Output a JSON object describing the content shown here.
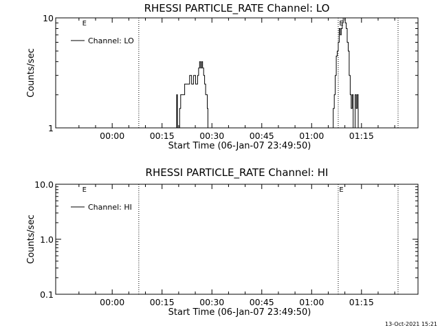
{
  "footer": {
    "timestamp": "13-Oct-2021 15:21"
  },
  "chart_data": [
    {
      "type": "line",
      "title": "RHESSI PARTICLE_RATE Channel: LO",
      "xlabel": "Start Time (06-Jan-07 23:49:50)",
      "ylabel": "Counts/sec",
      "x_units": "minutes",
      "xlim": [
        -17,
        92
      ],
      "ylim": [
        1,
        10
      ],
      "yscale": "log",
      "xticks": [
        {
          "t": 0,
          "label": "00:00"
        },
        {
          "t": 15,
          "label": "00:15"
        },
        {
          "t": 30,
          "label": "00:30"
        },
        {
          "t": 45,
          "label": "00:45"
        },
        {
          "t": 60,
          "label": "01:00"
        },
        {
          "t": 75,
          "label": "01:15"
        }
      ],
      "yticks": [
        {
          "v": 1,
          "label": "1"
        },
        {
          "v": 10,
          "label": "10"
        }
      ],
      "vlines": [
        8,
        68,
        86
      ],
      "flags": [
        {
          "t": -9,
          "text": "E"
        },
        {
          "t": 68.3,
          "text": "E"
        }
      ],
      "legend": {
        "label": "Channel: LO",
        "placement": "top-left"
      },
      "series": [
        {
          "name": "Channel: LO",
          "x": [
            19.2,
            19.4,
            19.6,
            20.0,
            20.3,
            20.6,
            20.9,
            21.2,
            21.5,
            21.8,
            22.1,
            22.4,
            22.7,
            23.0,
            23.3,
            23.6,
            23.9,
            24.2,
            24.5,
            24.8,
            25.1,
            25.4,
            25.7,
            26.0,
            26.3,
            26.6,
            26.9,
            27.2,
            27.5,
            27.8,
            28.1,
            28.4,
            28.6,
            28.8,
            61.7,
            62.0,
            62.3,
            62.6,
            62.9,
            63.2,
            63.5,
            63.8,
            64.1,
            64.4,
            64.7,
            65.0,
            65.3,
            65.6,
            65.9,
            66.2,
            66.5,
            66.8,
            67.1,
            67.4,
            67.7,
            68.0,
            68.3,
            68.6,
            68.9,
            69.2,
            69.5,
            69.8,
            70.1,
            70.4,
            70.7,
            71.0,
            71.3,
            71.6,
            71.9,
            72.2,
            72.5,
            72.8,
            73.1,
            73.4,
            73.7,
            74.0
          ],
          "y": [
            1,
            2,
            1,
            1,
            1.5,
            2,
            2,
            2,
            2,
            2.5,
            2.5,
            2.5,
            2.5,
            2.5,
            3,
            3,
            2.5,
            2.5,
            3,
            3,
            2.5,
            2.5,
            3,
            3.5,
            4,
            3.5,
            4,
            3.5,
            3,
            2.5,
            2,
            2,
            1.5,
            1,
            1,
            1,
            1,
            1,
            1,
            1,
            1,
            1,
            1,
            1,
            1,
            1,
            1,
            1,
            1,
            1,
            1.5,
            2,
            3,
            4.5,
            5,
            6,
            8,
            7,
            8,
            9,
            10,
            10,
            9,
            8,
            6,
            5,
            3,
            2,
            1.5,
            2,
            1,
            1,
            2,
            1.5,
            2,
            1
          ]
        }
      ]
    },
    {
      "type": "line",
      "title": "RHESSI PARTICLE_RATE Channel: HI",
      "xlabel": "Start Time (06-Jan-07 23:49:50)",
      "ylabel": "Counts/sec",
      "x_units": "minutes",
      "xlim": [
        -17,
        92
      ],
      "ylim": [
        0.1,
        10
      ],
      "yscale": "log",
      "xticks": [
        {
          "t": 0,
          "label": "00:00"
        },
        {
          "t": 15,
          "label": "00:15"
        },
        {
          "t": 30,
          "label": "00:30"
        },
        {
          "t": 45,
          "label": "00:45"
        },
        {
          "t": 60,
          "label": "01:00"
        },
        {
          "t": 75,
          "label": "01:15"
        }
      ],
      "yticks": [
        {
          "v": 0.1,
          "label": "0.1"
        },
        {
          "v": 1,
          "label": "1.0"
        },
        {
          "v": 10,
          "label": "10.0"
        }
      ],
      "vlines": [
        8,
        68,
        86
      ],
      "flags": [
        {
          "t": -9,
          "text": "E"
        },
        {
          "t": 68.3,
          "text": "E"
        }
      ],
      "legend": {
        "label": "Channel: HI",
        "placement": "top-left"
      },
      "series": [
        {
          "name": "Channel: HI",
          "x": [],
          "y": []
        }
      ]
    }
  ]
}
